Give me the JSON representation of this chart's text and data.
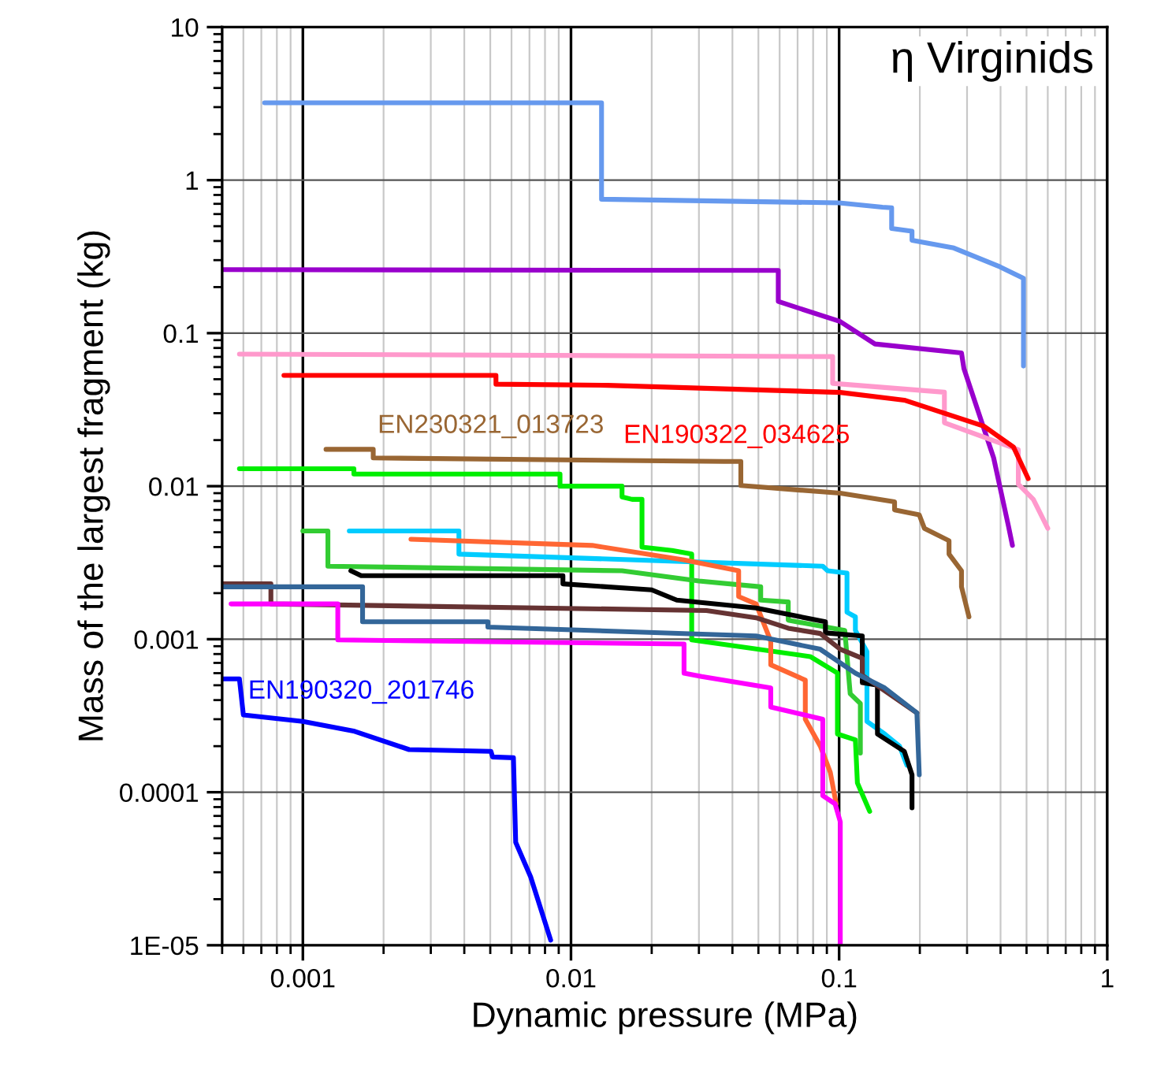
{
  "chart_data": {
    "type": "line",
    "xlabel": "Dynamic pressure (MPa)",
    "ylabel": "Mass of the largest fragment (kg)",
    "annotations": [
      "η Virginids"
    ],
    "log": "xy",
    "grid": true,
    "marker": "none",
    "line_style": "solid",
    "xlim": [
      0.0005,
      1
    ],
    "xticks": [
      0.001,
      0.01,
      0.1,
      1
    ],
    "ylim": [
      1e-05,
      10
    ],
    "yticks": [
      {
        "value": 1e-05,
        "label": "1E-05"
      },
      0.0001,
      0.001,
      0.01,
      0.1,
      1,
      10
    ],
    "series": [
      {
        "color": "#6699ee",
        "x": [
          0.00072,
          0.013,
          0.013,
          0.1,
          0.145,
          0.157,
          0.157,
          0.187,
          0.187,
          0.268,
          0.393,
          0.487,
          0.487
        ],
        "values": [
          3.2,
          3.2,
          0.75,
          0.71,
          0.665,
          0.66,
          0.483,
          0.464,
          0.405,
          0.36,
          0.274,
          0.228,
          0.061
        ]
      },
      {
        "color": "#9900cc",
        "x": [
          0.0005,
          0.0593,
          0.0593,
          0.101,
          0.136,
          0.286,
          0.292,
          0.377,
          0.428,
          0.443
        ],
        "values": [
          0.26,
          0.257,
          0.161,
          0.119,
          0.085,
          0.0743,
          0.0587,
          0.0153,
          0.0055,
          0.0041
        ]
      },
      {
        "color": "#ff99cc",
        "x": [
          0.00058,
          0.0946,
          0.0946,
          0.247,
          0.247,
          0.466,
          0.466,
          0.53,
          0.6
        ],
        "values": [
          0.073,
          0.0703,
          0.047,
          0.0411,
          0.026,
          0.0173,
          0.0103,
          0.0082,
          0.0053
        ]
      },
      {
        "name": "EN190322_034625",
        "color": "#ff0000",
        "x": [
          0.00085,
          0.00525,
          0.00525,
          0.0137,
          0.101,
          0.175,
          0.346,
          0.447,
          0.507
        ],
        "values": [
          0.053,
          0.053,
          0.0464,
          0.0456,
          0.041,
          0.0365,
          0.0247,
          0.018,
          0.0112
        ]
      },
      {
        "name": "EN230321_013723",
        "color": "#996633",
        "x": [
          0.00122,
          0.00183,
          0.00183,
          0.0372,
          0.043,
          0.043,
          0.101,
          0.161,
          0.161,
          0.199,
          0.208,
          0.257,
          0.257,
          0.286,
          0.286,
          0.305
        ],
        "values": [
          0.0174,
          0.0174,
          0.0153,
          0.0145,
          0.0145,
          0.0101,
          0.009,
          0.0079,
          0.007,
          0.0065,
          0.0053,
          0.0044,
          0.0036,
          0.0028,
          0.0022,
          0.0014
        ]
      },
      {
        "color": "#00ee00",
        "x": [
          0.00058,
          0.00155,
          0.00155,
          0.0091,
          0.0091,
          0.0155,
          0.0155,
          0.0169,
          0.0184,
          0.0184,
          0.0238,
          0.0282,
          0.0282,
          0.078,
          0.0986,
          0.0986,
          0.115,
          0.117,
          0.13
        ],
        "values": [
          0.013,
          0.013,
          0.012,
          0.012,
          0.01,
          0.01,
          0.0085,
          0.0082,
          0.0082,
          0.004,
          0.0038,
          0.0036,
          0.00099,
          0.00077,
          0.0006,
          0.00024,
          0.00022,
          0.000115,
          7.5e-05
        ]
      },
      {
        "color": "#33cc33",
        "x": [
          0.001,
          0.00124,
          0.00124,
          0.0155,
          0.03,
          0.051,
          0.051,
          0.0646,
          0.0646,
          0.105,
          0.11,
          0.12,
          0.12
        ],
        "values": [
          0.0051,
          0.0051,
          0.003,
          0.0028,
          0.0024,
          0.0022,
          0.0018,
          0.00175,
          0.00133,
          0.00114,
          0.00044,
          0.00038,
          0.00018
        ]
      },
      {
        "color": "#00ccff",
        "x": [
          0.00149,
          0.00382,
          0.00382,
          0.0869,
          0.0906,
          0.107,
          0.107,
          0.115,
          0.115,
          0.127,
          0.127,
          0.148,
          0.168,
          0.179
        ],
        "values": [
          0.0051,
          0.0051,
          0.0036,
          0.003,
          0.0028,
          0.0027,
          0.0015,
          0.0014,
          0.00114,
          0.00083,
          0.00029,
          0.00024,
          0.0002,
          0.00015
        ]
      },
      {
        "color": "#ff6633",
        "x": [
          0.00253,
          0.012,
          0.0264,
          0.0422,
          0.0422,
          0.049,
          0.0556,
          0.0556,
          0.0748,
          0.0748,
          0.0851,
          0.0927,
          0.0975
        ],
        "values": [
          0.0045,
          0.0041,
          0.0033,
          0.0028,
          0.0019,
          0.0017,
          0.00097,
          0.00068,
          0.00054,
          0.0003,
          0.0002,
          0.000135,
          8.4e-05
        ]
      },
      {
        "color": "#000000",
        "x": [
          0.00151,
          0.00165,
          0.00933,
          0.00933,
          0.02,
          0.0248,
          0.049,
          0.0889,
          0.0889,
          0.122,
          0.122,
          0.139,
          0.139,
          0.175,
          0.187,
          0.187
        ],
        "values": [
          0.0028,
          0.0026,
          0.0026,
          0.0023,
          0.0021,
          0.0018,
          0.0016,
          0.0013,
          0.0011,
          0.00105,
          0.00052,
          0.0005,
          0.00024,
          0.000185,
          0.00013,
          7.9e-05
        ]
      },
      {
        "color": "#663333",
        "x": [
          0.0005,
          0.00076,
          0.00076,
          0.032,
          0.049,
          0.0646,
          0.085,
          0.101,
          0.122,
          0.122,
          0.195
        ],
        "values": [
          0.0023,
          0.0023,
          0.0017,
          0.00154,
          0.00138,
          0.00118,
          0.00109,
          0.00086,
          0.00075,
          0.00058,
          0.00033
        ]
      },
      {
        "color": "#336699",
        "x": [
          0.0005,
          0.00167,
          0.00167,
          0.0049,
          0.0049,
          0.049,
          0.085,
          0.115,
          0.148,
          0.195,
          0.199
        ],
        "values": [
          0.0022,
          0.0022,
          0.0013,
          0.0013,
          0.0012,
          0.00105,
          0.00086,
          0.0006,
          0.00048,
          0.00033,
          0.00013
        ]
      },
      {
        "color": "#ff00ff",
        "x": [
          0.00054,
          0.00135,
          0.00135,
          0.0264,
          0.0264,
          0.0307,
          0.0556,
          0.0556,
          0.0869,
          0.0869,
          0.0966,
          0.101,
          0.101
        ],
        "values": [
          0.0017,
          0.0017,
          0.00099,
          0.00093,
          0.0006,
          0.00057,
          0.00048,
          0.00036,
          0.0003,
          9.5e-05,
          8.4e-05,
          6.4e-05,
          1e-05
        ]
      },
      {
        "name": "EN190320_201746",
        "color": "#0000ff",
        "x": [
          0.0005,
          0.00058,
          0.0006,
          0.001,
          0.00156,
          0.00249,
          0.00503,
          0.0051,
          0.0061,
          0.00622,
          0.00707,
          0.0084
        ],
        "values": [
          0.00055,
          0.00055,
          0.00032,
          0.00029,
          0.00025,
          0.00019,
          0.000185,
          0.00017,
          0.000168,
          4.7e-05,
          2.8e-05,
          1.08e-05
        ]
      }
    ]
  }
}
